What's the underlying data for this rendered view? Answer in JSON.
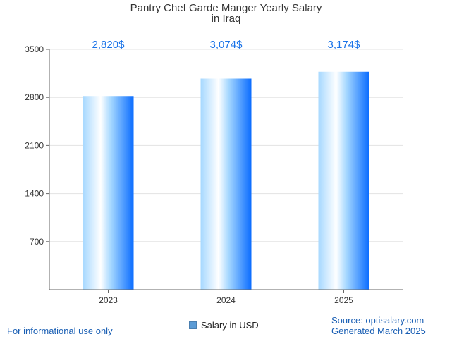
{
  "chart_data": {
    "type": "bar",
    "title": "Pantry Chef Garde Manger Yearly Salary",
    "subtitle": "in Iraq",
    "categories": [
      "2023",
      "2024",
      "2025"
    ],
    "series": [
      {
        "name": "Salary in USD",
        "values": [
          2820,
          3074,
          3174
        ]
      }
    ],
    "data_labels": [
      "2,820$",
      "3,074$",
      "3,174$"
    ],
    "ylim": [
      0,
      3500
    ],
    "yticks": [
      700,
      1400,
      2100,
      2800,
      3500
    ],
    "grid": true,
    "legend": "bottom-center",
    "colors": {
      "bar_light": "#ffffff",
      "bar_mid": "#a6d8ff",
      "bar_dark": "#0a6cff",
      "label": "#1a73e8",
      "grid": "#e3e3e3",
      "axis": "#666666"
    }
  },
  "footer": {
    "disclaimer": "For informational use only",
    "source": "Source: optisalary.com",
    "generated": "Generated March 2025"
  }
}
